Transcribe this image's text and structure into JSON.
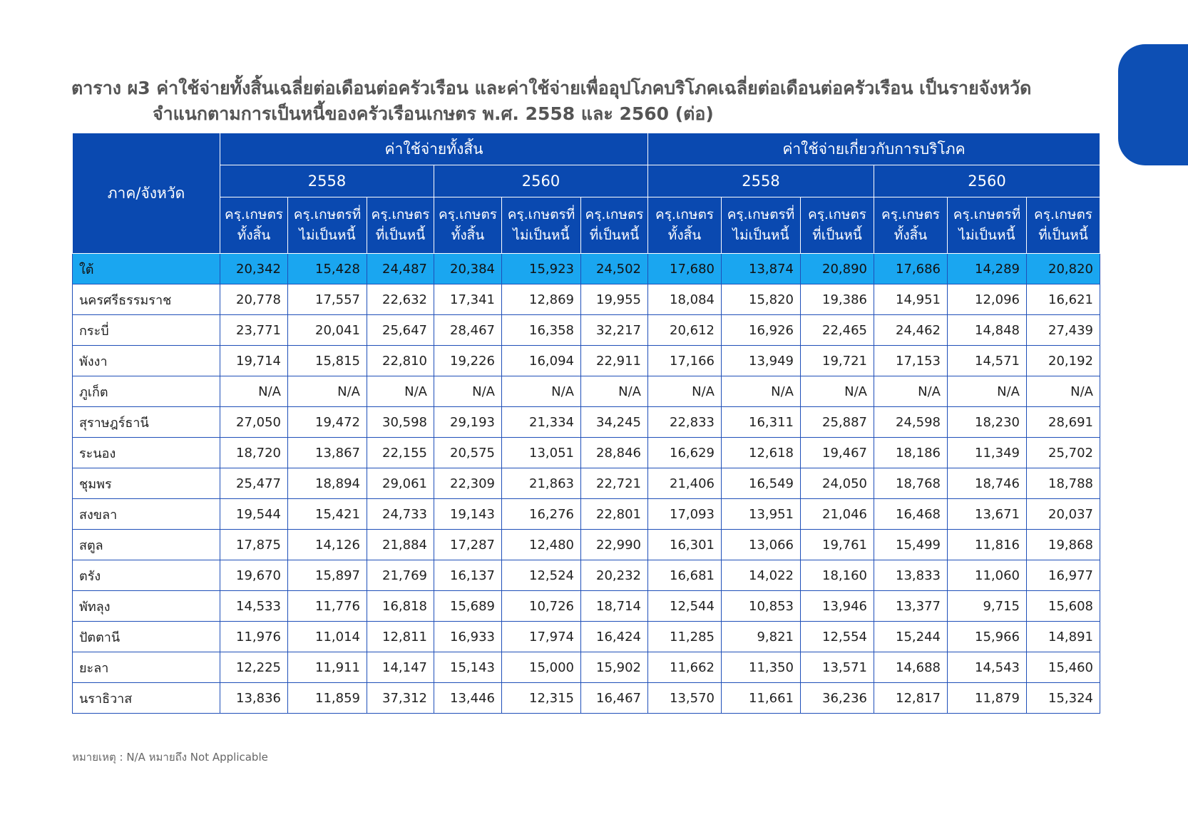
{
  "title": {
    "line1": "ตาราง ผ3 ค่าใช้จ่ายทั้งสิ้นเฉลี่ยต่อเดือนต่อครัวเรือน และค่าใช้จ่ายเพื่ออุปโภคบริโภคเฉลี่ยต่อเดือนต่อครัวเรือน เป็นรายจังหวัด",
    "line2": "จำแนกตามการเป็นหนี้ของครัวเรือนเกษตร พ.ศ. 2558 และ 2560 (ต่อ)"
  },
  "header": {
    "region": "ภาค/จังหวัด",
    "group_total": "ค่าใช้จ่ายทั้งสิ้น",
    "group_consumption": "ค่าใช้จ่ายเกี่ยวกับการบริโภค",
    "year_2558": "2558",
    "year_2560": "2560",
    "col_all_1": "ครฺ.เกษตร",
    "col_all_2": "ทั้งสิ้น",
    "col_nodebt_1": "ครฺ.เกษตรที่",
    "col_nodebt_2": "ไม่เป็นหนี้",
    "col_debt_1": "ครฺ.เกษตร",
    "col_debt_2": "ที่เป็นหนี้"
  },
  "rows": [
    {
      "name": "ใต้",
      "values": [
        "20,342",
        "15,428",
        "24,487",
        "20,384",
        "15,923",
        "24,502",
        "17,680",
        "13,874",
        "20,890",
        "17,686",
        "14,289",
        "20,820"
      ]
    },
    {
      "name": "นครศรีธรรมราช",
      "values": [
        "20,778",
        "17,557",
        "22,632",
        "17,341",
        "12,869",
        "19,955",
        "18,084",
        "15,820",
        "19,386",
        "14,951",
        "12,096",
        "16,621"
      ]
    },
    {
      "name": "กระบี่",
      "values": [
        "23,771",
        "20,041",
        "25,647",
        "28,467",
        "16,358",
        "32,217",
        "20,612",
        "16,926",
        "22,465",
        "24,462",
        "14,848",
        "27,439"
      ]
    },
    {
      "name": "พังงา",
      "values": [
        "19,714",
        "15,815",
        "22,810",
        "19,226",
        "16,094",
        "22,911",
        "17,166",
        "13,949",
        "19,721",
        "17,153",
        "14,571",
        "20,192"
      ]
    },
    {
      "name": "ภูเก็ต",
      "values": [
        "N/A",
        "N/A",
        "N/A",
        "N/A",
        "N/A",
        "N/A",
        "N/A",
        "N/A",
        "N/A",
        "N/A",
        "N/A",
        "N/A"
      ]
    },
    {
      "name": "สุราษฎร์ธานี",
      "values": [
        "27,050",
        "19,472",
        "30,598",
        "29,193",
        "21,334",
        "34,245",
        "22,833",
        "16,311",
        "25,887",
        "24,598",
        "18,230",
        "28,691"
      ]
    },
    {
      "name": "ระนอง",
      "values": [
        "18,720",
        "13,867",
        "22,155",
        "20,575",
        "13,051",
        "28,846",
        "16,629",
        "12,618",
        "19,467",
        "18,186",
        "11,349",
        "25,702"
      ]
    },
    {
      "name": "ชุมพร",
      "values": [
        "25,477",
        "18,894",
        "29,061",
        "22,309",
        "21,863",
        "22,721",
        "21,406",
        "16,549",
        "24,050",
        "18,768",
        "18,746",
        "18,788"
      ]
    },
    {
      "name": "สงขลา",
      "values": [
        "19,544",
        "15,421",
        "24,733",
        "19,143",
        "16,276",
        "22,801",
        "17,093",
        "13,951",
        "21,046",
        "16,468",
        "13,671",
        "20,037"
      ]
    },
    {
      "name": "สตูล",
      "values": [
        "17,875",
        "14,126",
        "21,884",
        "17,287",
        "12,480",
        "22,990",
        "16,301",
        "13,066",
        "19,761",
        "15,499",
        "11,816",
        "19,868"
      ]
    },
    {
      "name": "ตรัง",
      "values": [
        "19,670",
        "15,897",
        "21,769",
        "16,137",
        "12,524",
        "20,232",
        "16,681",
        "14,022",
        "18,160",
        "13,833",
        "11,060",
        "16,977"
      ]
    },
    {
      "name": "พัทลุง",
      "values": [
        "14,533",
        "11,776",
        "16,818",
        "15,689",
        "10,726",
        "18,714",
        "12,544",
        "10,853",
        "13,946",
        "13,377",
        "9,715",
        "15,608"
      ]
    },
    {
      "name": "ปัตตานี",
      "values": [
        "11,976",
        "11,014",
        "12,811",
        "16,933",
        "17,974",
        "16,424",
        "11,285",
        "9,821",
        "12,554",
        "15,244",
        "15,966",
        "14,891"
      ]
    },
    {
      "name": "ยะลา",
      "values": [
        "12,225",
        "11,911",
        "14,147",
        "15,143",
        "15,000",
        "15,902",
        "11,662",
        "11,350",
        "13,571",
        "14,688",
        "14,543",
        "15,460"
      ]
    },
    {
      "name": "นราธิวาส",
      "values": [
        "13,836",
        "11,859",
        "37,312",
        "13,446",
        "12,315",
        "16,467",
        "13,570",
        "11,661",
        "36,236",
        "12,817",
        "11,879",
        "15,324"
      ]
    }
  ],
  "note": "หมายเหตุ : N/A หมายถึง Not Applicable",
  "colors": {
    "header_bg": "#0a49b0",
    "summary_bg": "#1aa6f0",
    "border": "#1f4fb8"
  }
}
